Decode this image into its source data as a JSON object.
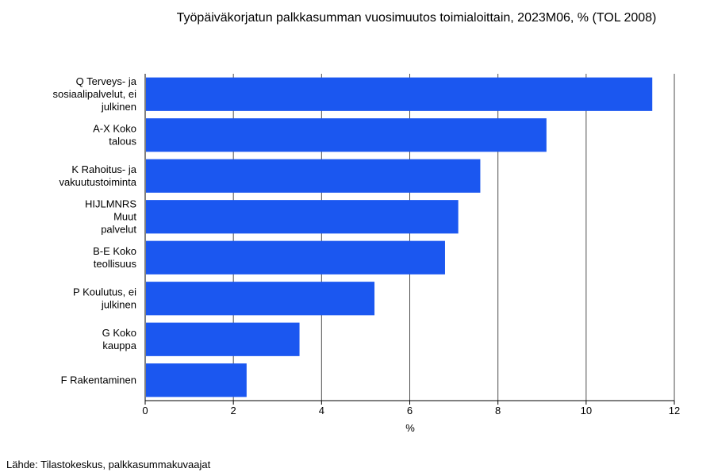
{
  "chart_data": {
    "type": "bar",
    "orientation": "horizontal",
    "title": "Työpäiväkorjatun palkkasumman vuosimuutos toimialoittain, 2023M06, % (TOL 2008)",
    "xlabel": "%",
    "ylabel": "",
    "xlim": [
      0,
      12
    ],
    "x_ticks": [
      "0",
      "2",
      "4",
      "6",
      "8",
      "10",
      "12"
    ],
    "grid": true,
    "categories": [
      [
        "Q Terveys- ja",
        "sosiaalipalvelut, ei",
        "julkinen"
      ],
      [
        "A-X Koko",
        "talous"
      ],
      [
        "K Rahoitus- ja",
        "vakuutustoiminta"
      ],
      [
        "HIJLMNRS",
        "Muut",
        "palvelut"
      ],
      [
        "B-E Koko",
        "teollisuus"
      ],
      [
        "P Koulutus, ei",
        "julkinen"
      ],
      [
        "G Koko",
        "kauppa"
      ],
      [
        "F Rakentaminen"
      ]
    ],
    "values": [
      11.5,
      9.1,
      7.6,
      7.1,
      6.8,
      5.2,
      3.5,
      2.3
    ],
    "bar_color": "#1b57f0",
    "grid_color": "#4d4d4d"
  },
  "source": "Lähde: Tilastokeskus, palkkasummakuvaajat"
}
